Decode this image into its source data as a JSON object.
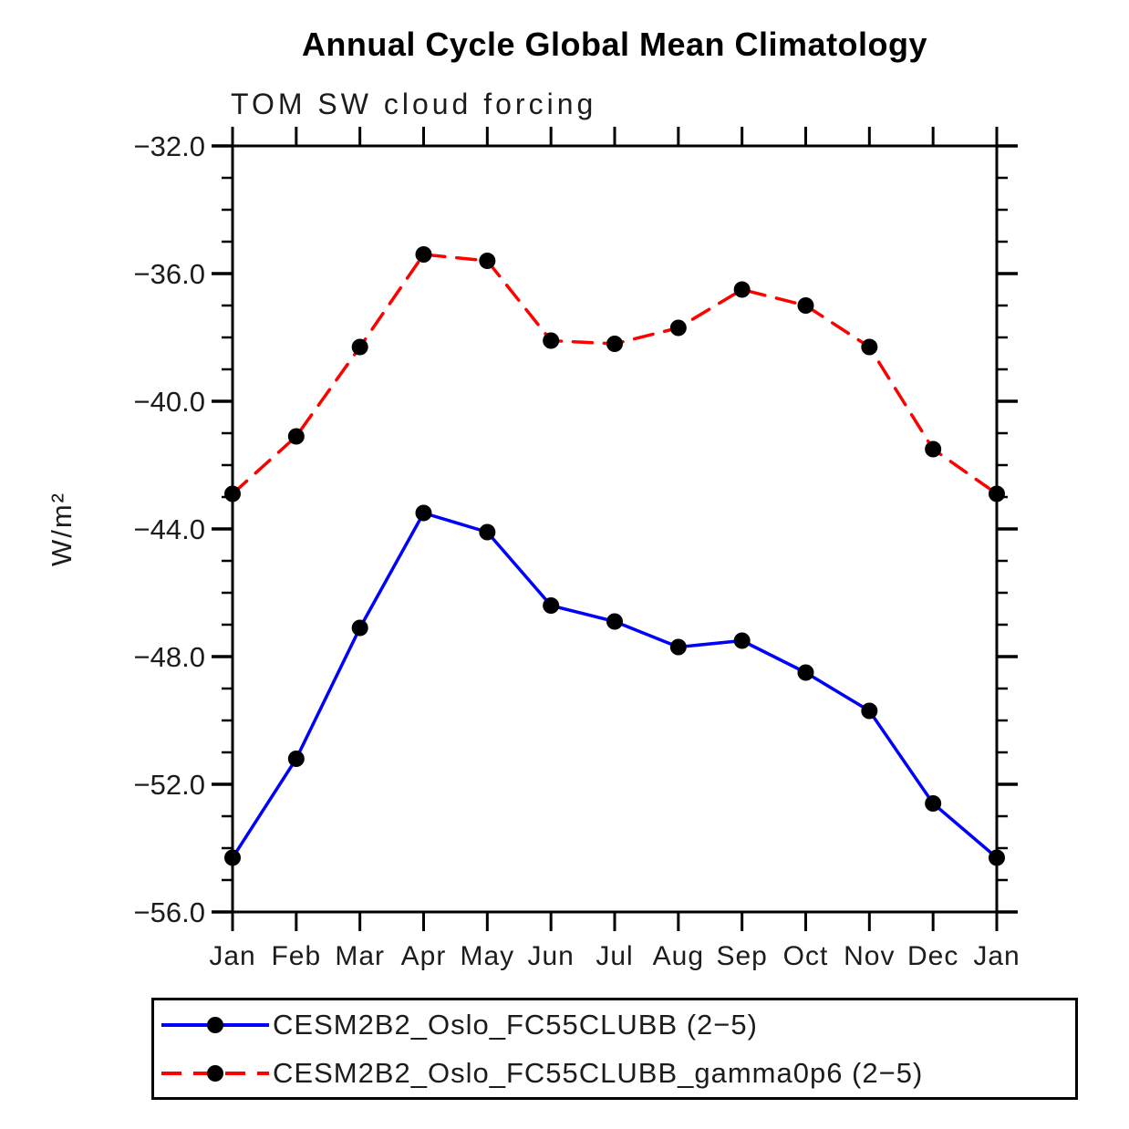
{
  "title": "Annual Cycle Global Mean Climatology",
  "subtitle": "TOM SW cloud forcing",
  "ylabel": "W/m²",
  "colors": {
    "background": "#ffffff",
    "axis": "#000000",
    "text": "#1c1c1c",
    "series1": "#0000ff",
    "series2": "#ff0000",
    "marker": "#000000"
  },
  "chart_data": {
    "type": "line",
    "title": "Annual Cycle Global Mean Climatology",
    "subtitle": "TOM SW cloud forcing",
    "xlabel": "",
    "ylabel": "W/m²",
    "x_tick_labels": [
      "Jan",
      "Feb",
      "Mar",
      "Apr",
      "May",
      "Jun",
      "Jul",
      "Aug",
      "Sep",
      "Oct",
      "Nov",
      "Dec",
      "Jan"
    ],
    "y_ticks": [
      -32.0,
      -36.0,
      -40.0,
      -44.0,
      -48.0,
      -52.0,
      -56.0
    ],
    "y_tick_labels": [
      "−32.0",
      "−36.0",
      "−40.0",
      "−44.0",
      "−48.0",
      "−52.0",
      "−56.0"
    ],
    "ylim": [
      -56.0,
      -32.0
    ],
    "y_minor_step": 1.0,
    "grid": false,
    "legend_position": "bottom",
    "series": [
      {
        "name": "CESM2B2_Oslo_FC55CLUBB (2−5)",
        "color": "#0000ff",
        "style": "solid",
        "marker": "circle",
        "marker_color": "#000000",
        "values": [
          -54.3,
          -51.2,
          -47.1,
          -43.5,
          -44.1,
          -46.4,
          -46.9,
          -47.7,
          -47.5,
          -48.5,
          -49.7,
          -52.6,
          -54.3
        ]
      },
      {
        "name": "CESM2B2_Oslo_FC55CLUBB_gamma0p6 (2−5)",
        "color": "#ff0000",
        "style": "dashed",
        "marker": "circle",
        "marker_color": "#000000",
        "values": [
          -42.9,
          -41.1,
          -38.3,
          -35.4,
          -35.6,
          -38.1,
          -38.2,
          -37.7,
          -36.5,
          -37.0,
          -38.3,
          -41.5,
          -42.9
        ]
      }
    ]
  },
  "legend": {
    "items": [
      {
        "label": "CESM2B2_Oslo_FC55CLUBB (2−5)",
        "color": "#0000ff",
        "style": "solid"
      },
      {
        "label": "CESM2B2_Oslo_FC55CLUBB_gamma0p6 (2−5)",
        "color": "#ff0000",
        "style": "dashed"
      }
    ]
  }
}
